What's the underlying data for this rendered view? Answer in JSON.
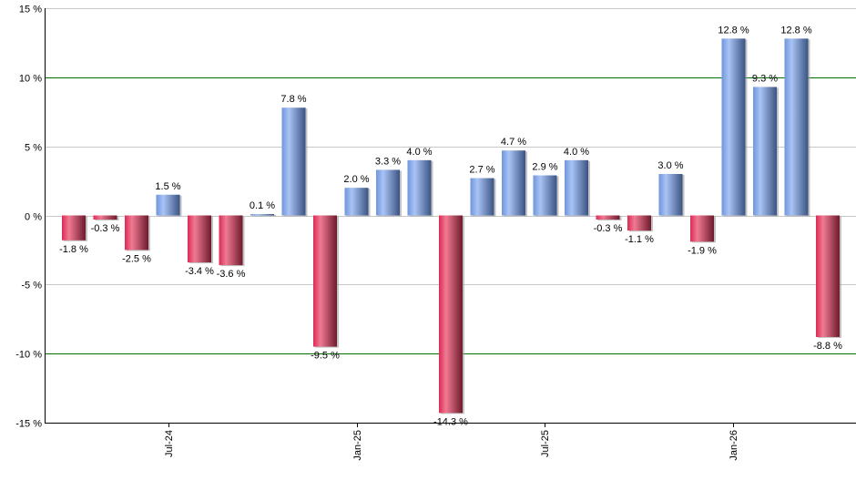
{
  "chart_data": {
    "type": "bar",
    "title": "",
    "xlabel": "",
    "ylabel": "",
    "ylim": [
      -15,
      15
    ],
    "yticks": [
      15,
      10,
      5,
      0,
      -5,
      -10,
      -15
    ],
    "ytick_labels": [
      "15 %",
      "10 %",
      "5 %",
      "0 %",
      "-5 %",
      "-10 %",
      "-15 %"
    ],
    "xtick_labels": [
      {
        "label": "Jul-24",
        "index": 3
      },
      {
        "label": "Jan-25",
        "index": 9
      },
      {
        "label": "Jul-25",
        "index": 15
      },
      {
        "label": "Jan-26",
        "index": 21
      }
    ],
    "reference_lines": [
      10,
      -10
    ],
    "grid": true,
    "legend": null,
    "values": [
      -1.8,
      -0.3,
      -2.5,
      1.5,
      -3.4,
      -3.6,
      0.1,
      7.8,
      -9.5,
      2.0,
      3.3,
      4.0,
      -14.3,
      2.7,
      4.7,
      2.9,
      4.0,
      -0.3,
      -1.1,
      3.0,
      -1.9,
      12.8,
      9.3,
      12.8,
      -8.8
    ],
    "labels": [
      "-1.8 %",
      "-0.3 %",
      "-2.5 %",
      "1.5 %",
      "-3.4 %",
      "-3.6 %",
      "0.1 %",
      "7.8 %",
      "-9.5 %",
      "2.0 %",
      "3.3 %",
      "4.0 %",
      "-14.3 %",
      "2.7 %",
      "4.7 %",
      "2.9 %",
      "4.0 %",
      "-0.3 %",
      "-1.1 %",
      "3.0 %",
      "-1.9 %",
      "12.8 %",
      "9.3 %",
      "12.8 %",
      "-8.8 %"
    ]
  },
  "colors": {
    "positive_light": "#a9c4f5",
    "positive_mid": "#6f95dc",
    "positive_dark": "#3a5383",
    "negative_light": "#f07a93",
    "negative_mid": "#dc2b55",
    "negative_dark": "#6e1a2c",
    "gridline": "#c8c8c8",
    "reference_line": "#007000",
    "axis": "#000000"
  }
}
